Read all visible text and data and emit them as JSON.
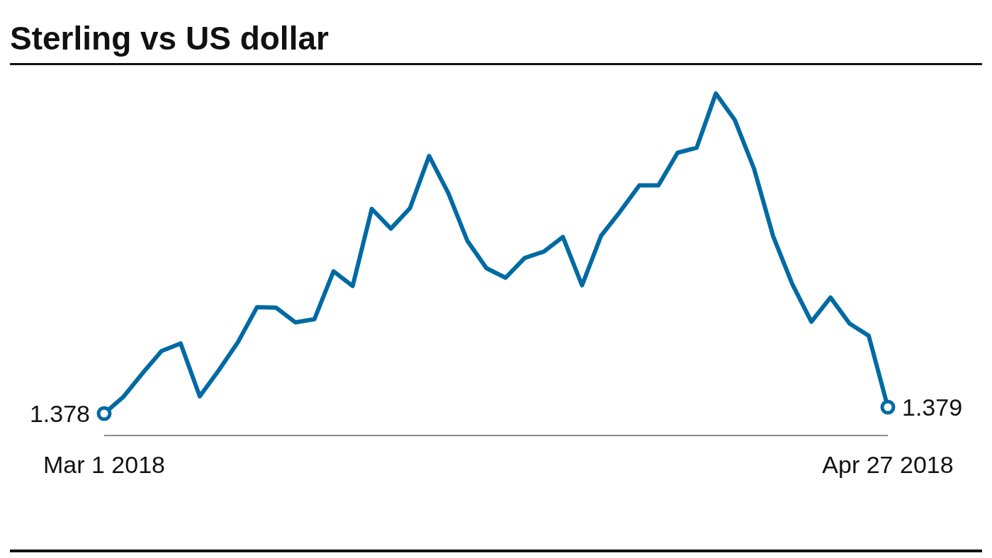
{
  "chart_data": {
    "type": "line",
    "title": "Sterling vs US dollar",
    "categories": [
      "Mar 1 2018",
      null,
      null,
      null,
      null,
      null,
      null,
      null,
      null,
      null,
      null,
      null,
      null,
      null,
      null,
      null,
      null,
      null,
      null,
      null,
      null,
      null,
      null,
      null,
      null,
      null,
      null,
      null,
      null,
      null,
      null,
      null,
      null,
      null,
      null,
      null,
      null,
      null,
      null,
      null,
      null,
      "Apr 27 2018"
    ],
    "series": [
      {
        "color": "#006aa3",
        "values": [
          1.378,
          1.3806,
          1.3843,
          1.3878,
          1.389,
          1.3807,
          1.3848,
          1.3892,
          1.3947,
          1.3946,
          1.3923,
          1.3928,
          1.4003,
          1.398,
          1.4101,
          1.407,
          1.4102,
          1.4184,
          1.4126,
          1.4051,
          1.4008,
          1.3993,
          1.4024,
          1.4034,
          1.4057,
          1.3981,
          1.4059,
          1.4097,
          1.4138,
          1.4138,
          1.4189,
          1.4197,
          1.4282,
          1.424,
          1.4164,
          1.4058,
          1.3983,
          1.3924,
          1.3962,
          1.3921,
          1.3902,
          1.379
        ],
        "value_labels": [
          "1.378",
          null,
          null,
          null,
          null,
          null,
          null,
          null,
          null,
          null,
          null,
          null,
          null,
          null,
          null,
          null,
          null,
          null,
          null,
          null,
          null,
          null,
          null,
          null,
          null,
          null,
          null,
          null,
          null,
          null,
          null,
          null,
          null,
          null,
          null,
          null,
          null,
          null,
          null,
          null,
          null,
          "1.379"
        ]
      }
    ],
    "tick_labels": "x"
  }
}
